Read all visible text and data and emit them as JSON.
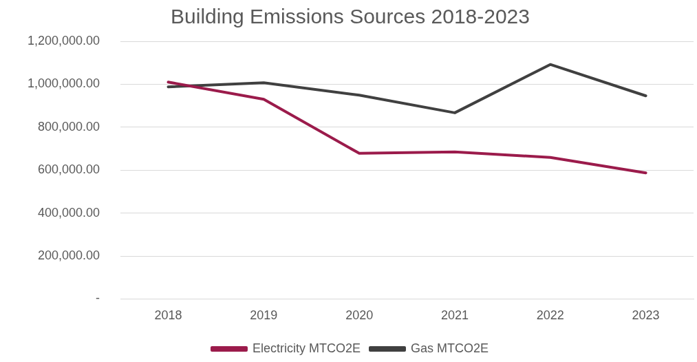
{
  "chart_data": {
    "type": "line",
    "title": "Building Emissions Sources 2018-2023",
    "categories": [
      "2018",
      "2019",
      "2020",
      "2021",
      "2022",
      "2023"
    ],
    "series": [
      {
        "name": "Electricity MTCO2E",
        "color": "#9b1b4b",
        "values": [
          1010000,
          930000,
          678000,
          685000,
          659000,
          587000
        ]
      },
      {
        "name": "Gas MTCO2E",
        "color": "#404040",
        "values": [
          988000,
          1007000,
          949000,
          867000,
          1092000,
          946000
        ]
      }
    ],
    "ylim": [
      0,
      1200000
    ],
    "yticks": [
      {
        "value": 0,
        "label": "-"
      },
      {
        "value": 200000,
        "label": "200,000.00"
      },
      {
        "value": 400000,
        "label": "400,000.00"
      },
      {
        "value": 600000,
        "label": "600,000.00"
      },
      {
        "value": 800000,
        "label": "800,000.00"
      },
      {
        "value": 1000000,
        "label": "1,000,000.00"
      },
      {
        "value": 1200000,
        "label": "1,200,000.00"
      }
    ],
    "grid": "y",
    "legend": "bottom",
    "marker": "none",
    "line_style": "solid"
  }
}
